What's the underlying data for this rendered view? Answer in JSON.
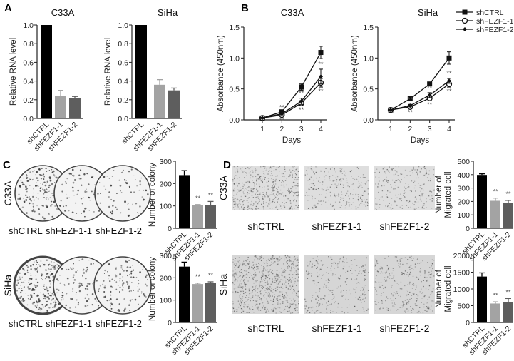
{
  "figure": {
    "panels": [
      "A",
      "B",
      "C",
      "D"
    ],
    "colors": {
      "shCTRL": "#000000",
      "shFEZF1-1": "#a3a3a3",
      "shFEZF1-2": "#5e5e5e"
    },
    "c_rows": [
      "C33A",
      "SiHa"
    ],
    "d_rows": [
      "C33A",
      "SiHa"
    ],
    "c_cols": [
      "shCTRL",
      "shFEZF1-1",
      "shFEZF1-2"
    ],
    "d_cols": [
      "shCTRL",
      "shFEZF1-1",
      "shFEZF1-2"
    ],
    "sig_mark": "**"
  },
  "chart_data": [
    {
      "panel": "A",
      "type": "bar",
      "title": "C33A",
      "ylabel": "Relative RNA level",
      "xlabel": "",
      "categories": [
        "shCTRL",
        "shFEZF1-1",
        "shFEZF1-2"
      ],
      "values": [
        1.0,
        0.24,
        0.22
      ],
      "errors": [
        0,
        0.06,
        0.015
      ],
      "significant": [
        false,
        false,
        false
      ],
      "ylim": [
        0,
        1.0
      ],
      "yticks": [
        0.0,
        0.2,
        0.4,
        0.6,
        0.8,
        1.0
      ],
      "ytick_labels": [
        "0.0",
        "0.2",
        "0.4",
        "0.6",
        "0.8",
        "1.0"
      ]
    },
    {
      "panel": "A",
      "type": "bar",
      "title": "SiHa",
      "ylabel": "Relative RNA level",
      "xlabel": "",
      "categories": [
        "shCTRL",
        "shFEZF1-1",
        "shFEZF1-2"
      ],
      "values": [
        1.0,
        0.36,
        0.3
      ],
      "errors": [
        0,
        0.055,
        0.025
      ],
      "significant": [
        false,
        false,
        false
      ],
      "ylim": [
        0,
        1.0
      ],
      "yticks": [
        0.0,
        0.2,
        0.4,
        0.6,
        0.8,
        1.0
      ],
      "ytick_labels": [
        "0.0",
        "0.2",
        "0.4",
        "0.6",
        "0.8",
        "1.0"
      ]
    },
    {
      "panel": "B",
      "type": "line",
      "title": "C33A",
      "ylabel": "Absorbance (450nm)",
      "xlabel": "Days",
      "x": [
        1,
        2,
        3,
        4
      ],
      "xtick_labels": [
        "1",
        "2",
        "3",
        "4"
      ],
      "ylim": [
        0,
        1.5
      ],
      "yticks": [
        0,
        0.5,
        1.0,
        1.5
      ],
      "ytick_labels": [
        "0.0",
        "0.5",
        "1.0",
        "1.5"
      ],
      "series": [
        {
          "name": "shCTRL",
          "marker": "square",
          "values": [
            0.03,
            0.13,
            0.53,
            1.09
          ],
          "errors": [
            0.01,
            0.02,
            0.05,
            0.1
          ]
        },
        {
          "name": "shFEZF1-1",
          "marker": "circle",
          "values": [
            0.03,
            0.08,
            0.27,
            0.6
          ],
          "errors": [
            0.01,
            0.02,
            0.04,
            0.07
          ]
        },
        {
          "name": "shFEZF1-2",
          "marker": "plus",
          "values": [
            0.03,
            0.1,
            0.3,
            0.7
          ],
          "errors": [
            0.01,
            0.02,
            0.05,
            0.12
          ]
        }
      ]
    },
    {
      "panel": "B",
      "type": "line",
      "title": "SiHa",
      "ylabel": "Absorbance (450nm)",
      "xlabel": "Days",
      "x": [
        1,
        2,
        3,
        4
      ],
      "xtick_labels": [
        "1",
        "2",
        "3",
        "4"
      ],
      "ylim": [
        0,
        1.5
      ],
      "yticks": [
        0,
        0.5,
        1.0,
        1.5
      ],
      "ytick_labels": [
        "0.0",
        "0.5",
        "1.0",
        "1.5"
      ],
      "legend": "top-right",
      "series": [
        {
          "name": "shCTRL",
          "marker": "square",
          "values": [
            0.16,
            0.34,
            0.58,
            1.0
          ],
          "errors": [
            0.01,
            0.03,
            0.02,
            0.1
          ]
        },
        {
          "name": "shFEZF1-1",
          "marker": "circle",
          "values": [
            0.16,
            0.21,
            0.35,
            0.58
          ],
          "errors": [
            0.01,
            0.02,
            0.03,
            0.05
          ]
        },
        {
          "name": "shFEZF1-2",
          "marker": "plus",
          "values": [
            0.16,
            0.23,
            0.4,
            0.63
          ],
          "errors": [
            0.01,
            0.02,
            0.04,
            0.04
          ]
        }
      ]
    },
    {
      "panel": "C",
      "type": "bar",
      "title": "C33A",
      "ylabel": "Number of colony",
      "xlabel": "",
      "categories": [
        "shCTRL",
        "shFEZF1-1",
        "shFEZF1-2"
      ],
      "values": [
        238,
        103,
        105
      ],
      "errors": [
        20,
        3,
        15
      ],
      "significant": [
        false,
        true,
        true
      ],
      "ylim": [
        0,
        300
      ],
      "yticks": [
        0,
        100,
        200,
        300
      ],
      "ytick_labels": [
        "0",
        "100",
        "200",
        "300"
      ]
    },
    {
      "panel": "C",
      "type": "bar",
      "title": "SiHa",
      "ylabel": "Number of colony",
      "xlabel": "",
      "categories": [
        "shCTRL",
        "shFEZF1-1",
        "shFEZF1-2"
      ],
      "values": [
        250,
        172,
        178
      ],
      "errors": [
        20,
        4,
        4
      ],
      "significant": [
        false,
        true,
        true
      ],
      "ylim": [
        0,
        300
      ],
      "yticks": [
        0,
        100,
        200,
        300
      ],
      "ytick_labels": [
        "0",
        "100",
        "200",
        "300"
      ]
    },
    {
      "panel": "D",
      "type": "bar",
      "title": "C33A",
      "ylabel": "Number of Migrated cell",
      "ylabel_lines": [
        "Number of",
        "Migrated cell"
      ],
      "xlabel": "",
      "categories": [
        "shCTRL",
        "shFEZF1-1",
        "shFEZF1-2"
      ],
      "values": [
        398,
        205,
        188
      ],
      "errors": [
        8,
        20,
        20
      ],
      "significant": [
        false,
        true,
        true
      ],
      "ylim": [
        0,
        500
      ],
      "yticks": [
        0,
        100,
        200,
        300,
        400,
        500
      ],
      "ytick_labels": [
        "0",
        "100",
        "200",
        "300",
        "400",
        "500"
      ]
    },
    {
      "panel": "D",
      "type": "bar",
      "title": "SiHa",
      "ylabel": "Number of Migrated cell",
      "ylabel_lines": [
        "Number of",
        "Migrated cell"
      ],
      "xlabel": "",
      "categories": [
        "shCTRL",
        "shFEZF1-1",
        "shFEZF1-2"
      ],
      "values": [
        1370,
        565,
        605
      ],
      "errors": [
        110,
        50,
        110
      ],
      "significant": [
        false,
        true,
        true
      ],
      "ylim": [
        0,
        2000
      ],
      "yticks": [
        0,
        500,
        1000,
        1500,
        2000
      ],
      "ytick_labels": [
        "0",
        "500",
        "1000",
        "1500",
        "2000"
      ]
    }
  ]
}
